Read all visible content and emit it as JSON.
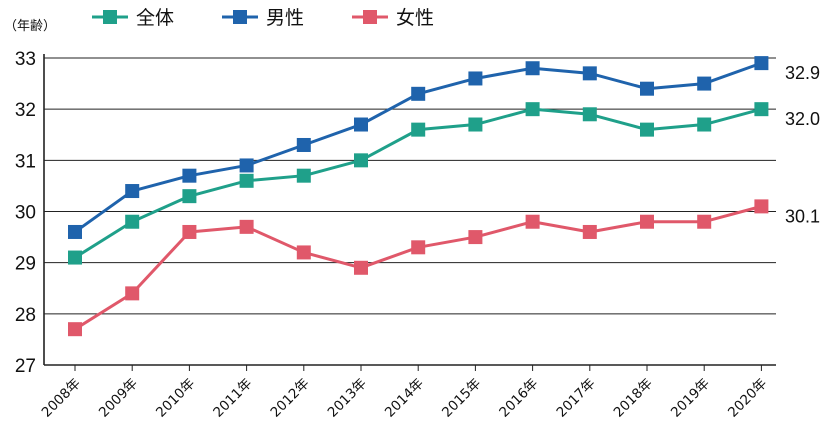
{
  "chart_data": {
    "type": "line",
    "ylabel": "（年齢）",
    "ylim": [
      27,
      33
    ],
    "yticks": [
      27,
      28,
      29,
      30,
      31,
      32,
      33
    ],
    "grid": "horizontal",
    "legend_placement": "top-left",
    "categories": [
      "2008年",
      "2009年",
      "2010年",
      "2011年",
      "2012年",
      "2013年",
      "2014年",
      "2015年",
      "2016年",
      "2017年",
      "2018年",
      "2019年",
      "2020年"
    ],
    "series": [
      {
        "name": "全体",
        "color": "#1fa08a",
        "values": [
          29.1,
          29.8,
          30.3,
          30.6,
          30.7,
          31.0,
          31.6,
          31.7,
          32.0,
          31.9,
          31.6,
          31.7,
          32.0
        ],
        "end_label": "32.0"
      },
      {
        "name": "男性",
        "color": "#1f63ac",
        "values": [
          29.6,
          30.4,
          30.7,
          30.9,
          31.3,
          31.7,
          32.3,
          32.6,
          32.8,
          32.7,
          32.4,
          32.5,
          32.9
        ],
        "end_label": "32.9"
      },
      {
        "name": "女性",
        "color": "#e0586a",
        "values": [
          27.7,
          28.4,
          29.6,
          29.7,
          29.2,
          28.9,
          29.3,
          29.5,
          29.8,
          29.6,
          29.8,
          29.8,
          30.1
        ],
        "end_label": "30.1"
      }
    ]
  }
}
